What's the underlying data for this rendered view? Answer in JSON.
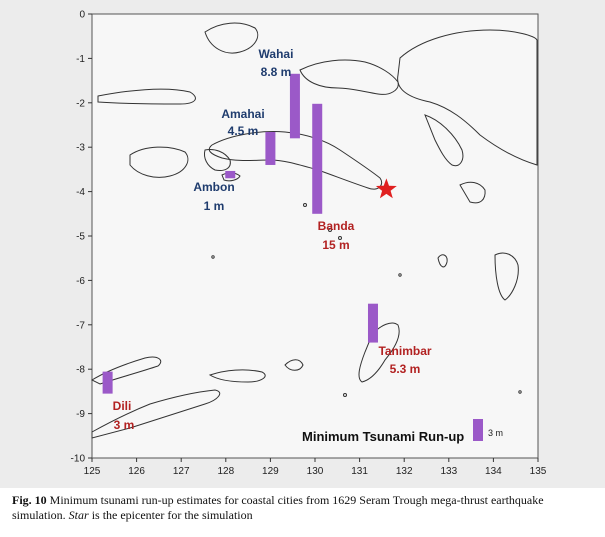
{
  "chart_data": {
    "type": "bar",
    "title": "Minimum Tsunami Run-up",
    "xlim": [
      125,
      135
    ],
    "ylim": [
      -10,
      0
    ],
    "x_ticks": [
      125,
      126,
      127,
      128,
      129,
      130,
      131,
      132,
      133,
      134,
      135
    ],
    "y_ticks": [
      0,
      -1,
      -2,
      -3,
      -4,
      -5,
      -6,
      -7,
      -8,
      -9,
      -10
    ],
    "grid": false,
    "bars": [
      {
        "name": "Dili",
        "value_label": "3 m",
        "run_up_m": 3,
        "lon": 125.35,
        "lat": -8.55
      },
      {
        "name": "Ambon",
        "value_label": "1 m",
        "run_up_m": 1,
        "lon": 128.1,
        "lat": -3.7
      },
      {
        "name": "Amahai",
        "value_label": "4.5 m",
        "run_up_m": 4.5,
        "lon": 129.0,
        "lat": -3.4
      },
      {
        "name": "Wahai",
        "value_label": "8.8 m",
        "run_up_m": 8.8,
        "lon": 129.55,
        "lat": -2.8
      },
      {
        "name": "Banda",
        "value_label": "15 m",
        "run_up_m": 15,
        "lon": 130.05,
        "lat": -4.5
      },
      {
        "name": "Tanimbar",
        "value_label": "5.3 m",
        "run_up_m": 5.3,
        "lon": 131.3,
        "lat": -7.4
      }
    ],
    "scale_bar": {
      "label": "3 m",
      "run_up_m": 3
    },
    "epicenter": {
      "lon": 131.6,
      "lat": -3.95
    },
    "colors": {
      "bar": "#9b59c8",
      "ambon_wahai_labels": "#1f3c6e",
      "banda_tanimbar_dili_labels": "#b22222",
      "star": "#e02020"
    }
  },
  "caption": {
    "fig_label": "Fig. 10",
    "text_1": "Minimum tsunami run-up estimates for coastal cities from 1629 Seram Trough mega-thrust earthquake simulation.",
    "italic_word": "Star",
    "text_2": "is the epicenter for the simulation"
  }
}
